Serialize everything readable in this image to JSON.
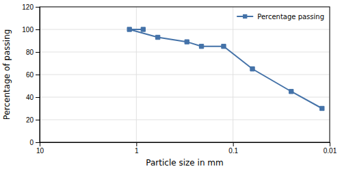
{
  "chart_data": {
    "type": "line",
    "x": [
      0.85,
      1.18,
      0.6,
      0.3,
      0.212,
      0.125,
      0.063,
      0.025,
      0.012
    ],
    "series": [
      {
        "name": "Percentage passing",
        "color": "#4472a8",
        "marker": "square",
        "values": [
          100,
          100,
          93,
          89,
          85,
          85,
          65,
          45,
          30
        ]
      }
    ],
    "xlabel": "Particle size in mm",
    "ylabel": "Percentage of passing",
    "xlim": [
      10,
      0.01
    ],
    "xticks": [
      10,
      1,
      0.1,
      0.01
    ],
    "ylim": [
      0,
      120
    ],
    "yticks": [
      0,
      20,
      40,
      60,
      80,
      100,
      120
    ],
    "log": "x",
    "grid": true,
    "legend": "upper-right"
  }
}
